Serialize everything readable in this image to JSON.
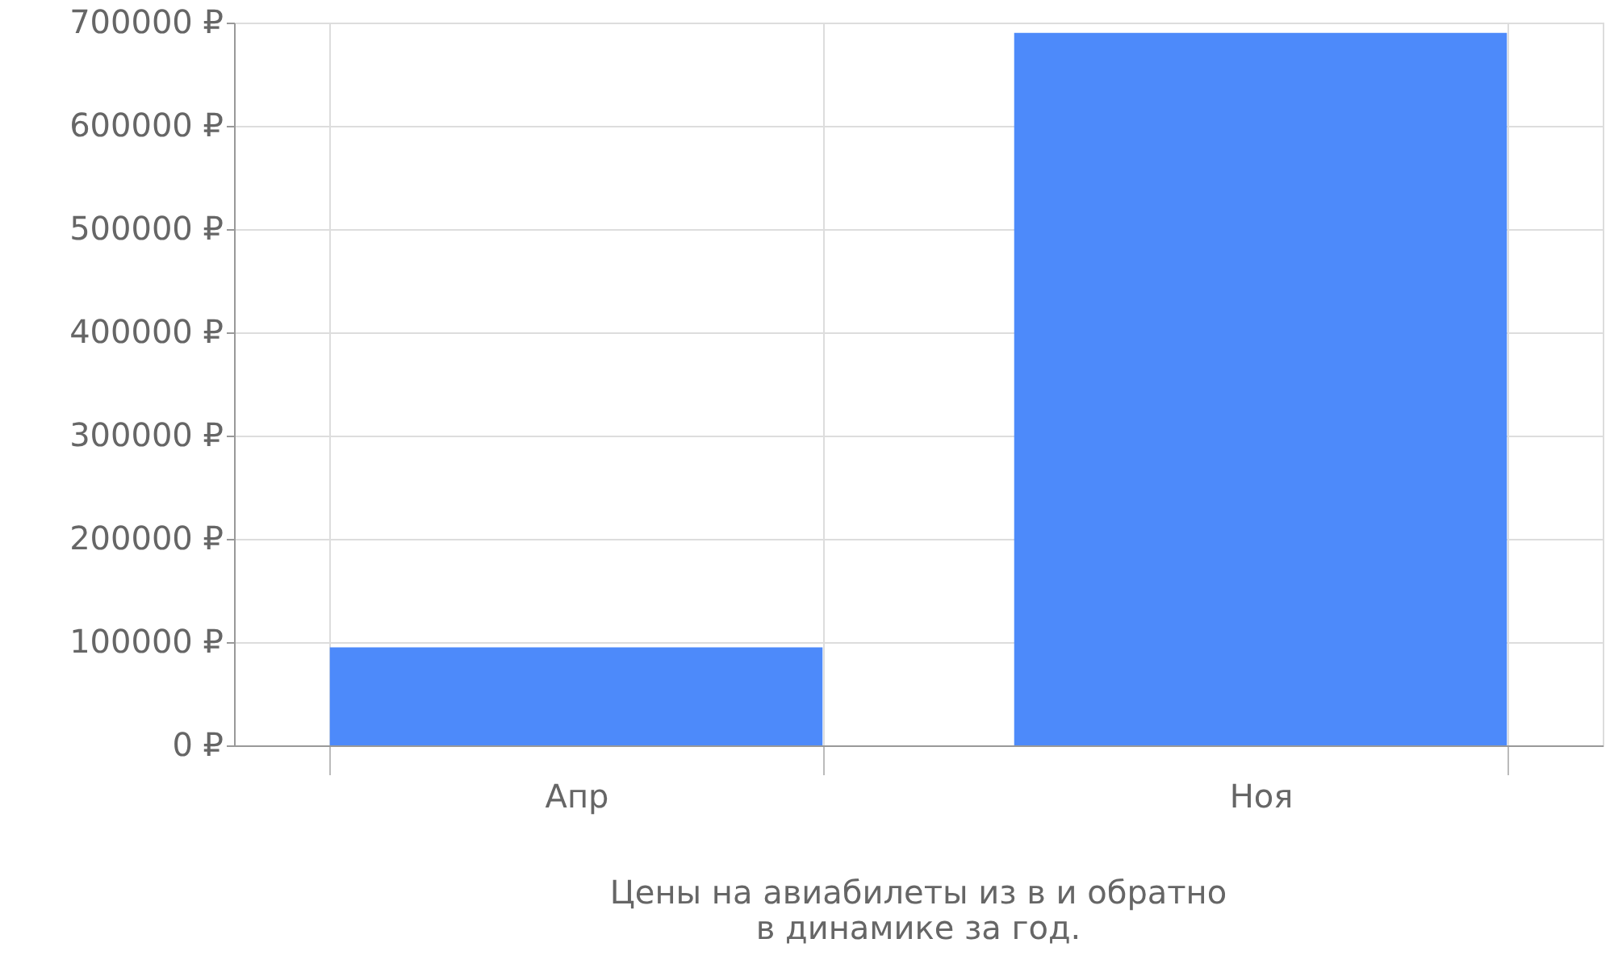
{
  "chart_data": {
    "type": "bar",
    "title": "Цены на авиабилеты из  в  и обратно",
    "subtitle": "в динамике за год.",
    "categories": [
      "Апр",
      "Ноя"
    ],
    "values": [
      95000,
      690000
    ],
    "color": "#4d8afa",
    "ylim": [
      0,
      700000
    ],
    "yticks": [
      {
        "value": 0,
        "label": "0 ₽"
      },
      {
        "value": 100000,
        "label": "100000 ₽"
      },
      {
        "value": 200000,
        "label": "200000 ₽"
      },
      {
        "value": 300000,
        "label": "300000 ₽"
      },
      {
        "value": 400000,
        "label": "400000 ₽"
      },
      {
        "value": 500000,
        "label": "500000 ₽"
      },
      {
        "value": 600000,
        "label": "600000 ₽"
      },
      {
        "value": 700000,
        "label": "700000 ₽"
      }
    ],
    "grid": true
  }
}
